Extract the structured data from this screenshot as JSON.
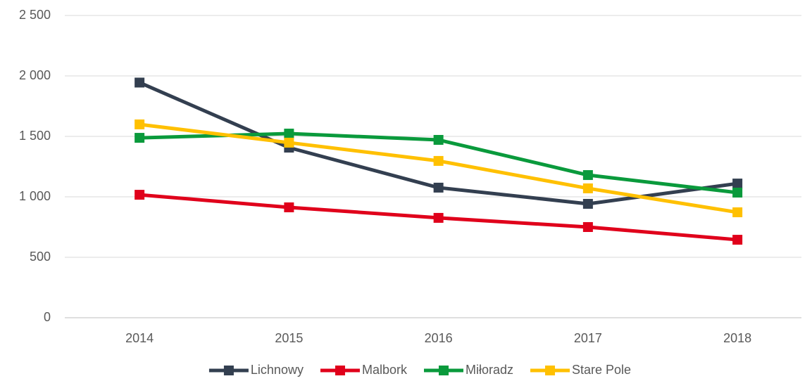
{
  "chart_data": {
    "type": "line",
    "categories": [
      "2014",
      "2015",
      "2016",
      "2017",
      "2018"
    ],
    "series": [
      {
        "name": "Lichnowy",
        "color": "#333f50",
        "values": [
          1945,
          1407,
          1076,
          942,
          1110
        ]
      },
      {
        "name": "Malbork",
        "color": "#e0001b",
        "values": [
          1017,
          913,
          826,
          750,
          645
        ]
      },
      {
        "name": "Miłoradz",
        "color": "#0a9a3c",
        "values": [
          1488,
          1523,
          1471,
          1180,
          1035
        ]
      },
      {
        "name": "Stare Pole",
        "color": "#ffc000",
        "values": [
          1599,
          1448,
          1297,
          1070,
          872
        ]
      }
    ],
    "ylim": [
      0,
      2500
    ],
    "yticks": [
      0,
      500,
      {
        "value": 1000,
        "label": "1 000"
      },
      {
        "value": 1500,
        "label": "1 500"
      },
      {
        "value": 2000,
        "label": "2 000"
      },
      {
        "value": 2500,
        "label": "2 500"
      }
    ],
    "grid": true,
    "legend": "bottom"
  }
}
